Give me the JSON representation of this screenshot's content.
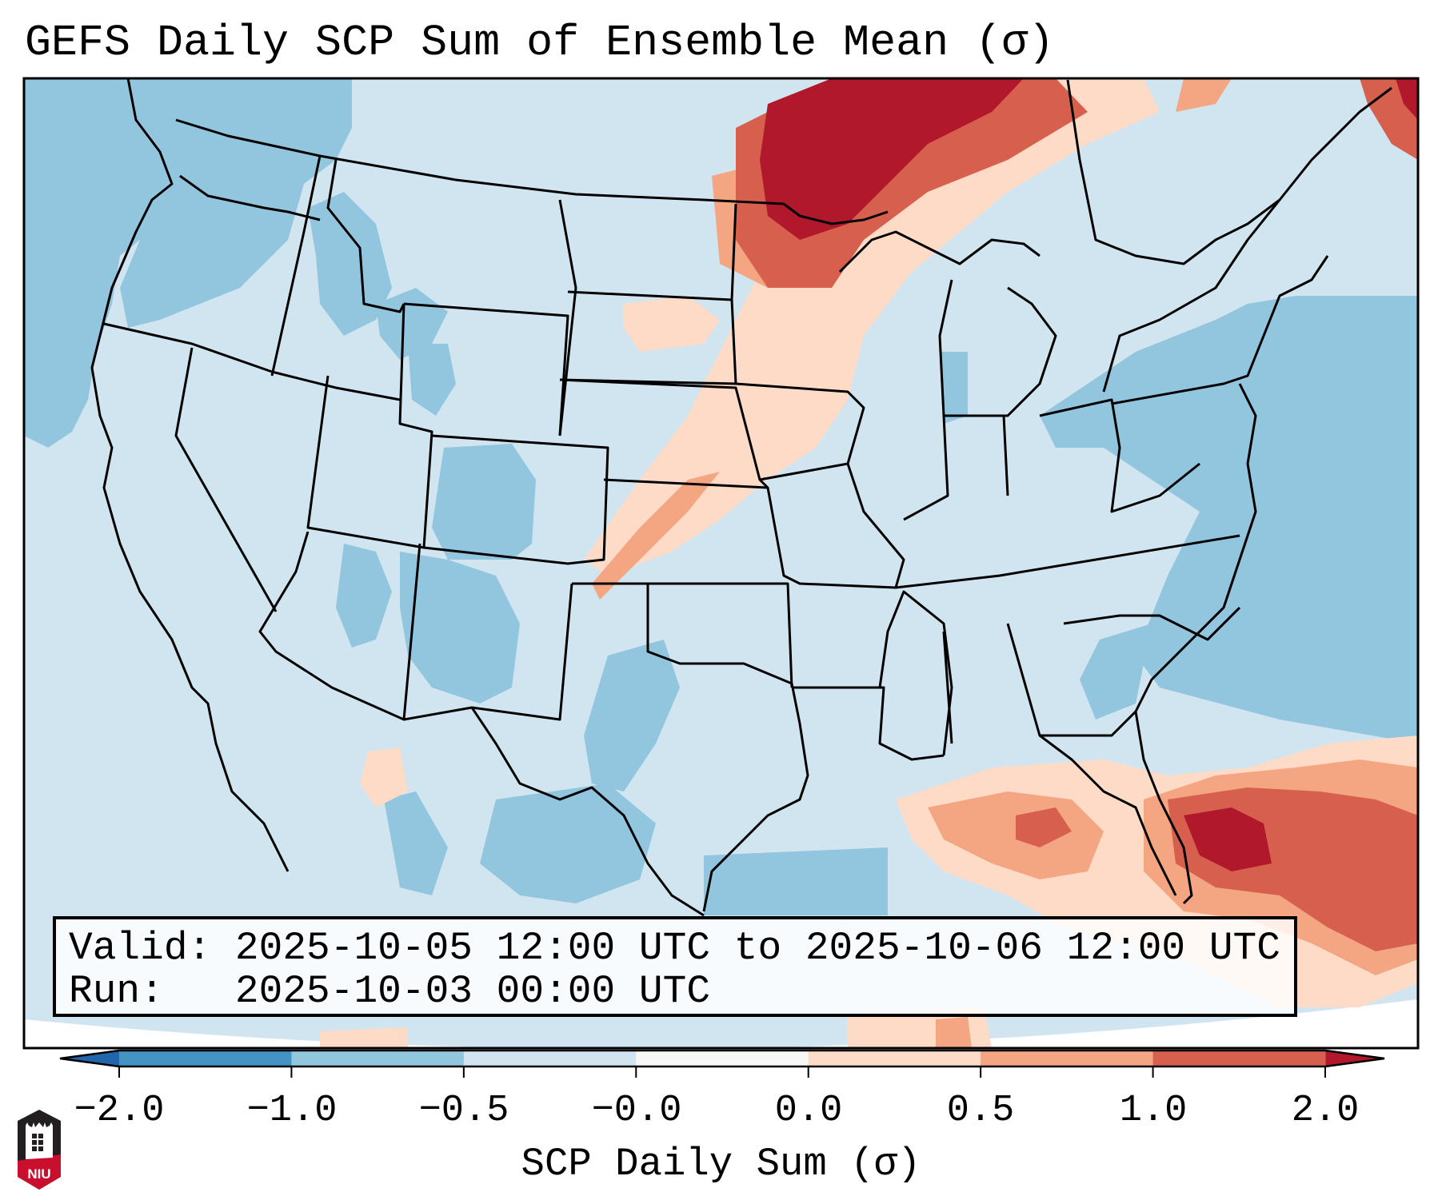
{
  "title": "GEFS Daily SCP Sum of Ensemble Mean (σ)",
  "info": {
    "valid_line": "Valid: 2025-10-05 12:00 UTC to 2025-10-06 12:00 UTC",
    "run_line": "Run:   2025-10-03 00:00 UTC"
  },
  "colorbar": {
    "label": "SCP Daily Sum (σ)",
    "ticks": [
      "−2.0",
      "−1.0",
      "−0.5",
      "−0.0",
      "0.0",
      "0.5",
      "1.0",
      "2.0"
    ],
    "bins": [
      {
        "from": "-2.0",
        "to": "-1.0",
        "color": "#4393c3"
      },
      {
        "from": "-1.0",
        "to": "-0.5",
        "color": "#92c5de"
      },
      {
        "from": "-0.5",
        "to": "-0.0",
        "color": "#d1e5f0"
      },
      {
        "from": "-0.0",
        "to": "0.0",
        "color": "#f7f7f7"
      },
      {
        "from": "0.0",
        "to": "0.5",
        "color": "#fddbc7"
      },
      {
        "from": "0.5",
        "to": "1.0",
        "color": "#f4a582"
      },
      {
        "from": "1.0",
        "to": "2.0",
        "color": "#d6604d"
      }
    ],
    "under_color": "#2166ac",
    "over_color": "#b2182b",
    "extend": "both"
  },
  "map": {
    "region": "Contiguous United States",
    "background_color": "#d1e5f0",
    "outline_color": "#000000"
  },
  "logo": {
    "text": "NIU",
    "colors": {
      "top": "#231f20",
      "bottom": "#c8102e"
    }
  }
}
